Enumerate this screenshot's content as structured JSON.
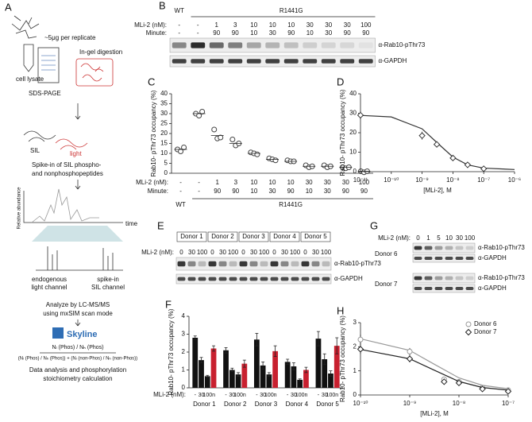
{
  "panel_a": {
    "label": "A",
    "amount": "~5μg per replicate",
    "digestion": "In-gel digestion",
    "lysate": "cell lysate",
    "gel": "SDS-PAGE",
    "sil": "SIL",
    "light": "light",
    "spike_in": [
      "Spike-in of SIL phospho-",
      "and nonphosphopeptides"
    ],
    "y_axis": "Relative abundance",
    "x_axis": "time",
    "channels": [
      [
        "endogenous",
        "light channel"
      ],
      [
        "spike-in",
        "SIL channel"
      ]
    ],
    "analyze": [
      "Analyze by LC-MS/MS",
      "using mxSIM scan mode"
    ],
    "software": "Skyline",
    "formula": [
      "Nₗ (Phos) / Nₕ (Phos)",
      "(Nₗ (Phos) / Nₕ (Phos)) + (Nₗ (non-Phos) / Nₕ (non-Phos))"
    ],
    "calculation": [
      "Data analysis and phosphorylation",
      "stoichiometry calculation"
    ]
  },
  "panel_b": {
    "label": "B",
    "groups": [
      "WT",
      "R1441G"
    ],
    "row_labels": [
      "MLi-2 (nM):",
      "Minute:"
    ],
    "mli": [
      "-",
      "-",
      "1",
      "3",
      "10",
      "10",
      "10",
      "30",
      "30",
      "30",
      "100"
    ],
    "minute": [
      "-",
      "-",
      "90",
      "90",
      "10",
      "30",
      "90",
      "10",
      "30",
      "90",
      "90"
    ],
    "antibodies": [
      "α-Rab10-pThr73",
      "α-GAPDH"
    ]
  },
  "panel_e": {
    "label": "E",
    "donors": [
      "Donor 1",
      "Donor 2",
      "Donor 3",
      "Donor 4",
      "Donor 5"
    ],
    "row_label": "MLi-2 (nM):",
    "doses": [
      "0",
      "30",
      "100"
    ],
    "antibodies": [
      "α-Rab10-pThr73",
      "α-GAPDH"
    ]
  },
  "panel_g": {
    "label": "G",
    "row_label": "MLi-2 (nM):",
    "doses": [
      "0",
      "1",
      "5",
      "10",
      "30",
      "100"
    ],
    "donors": [
      "Donor 6",
      "Donor 7"
    ],
    "antibodies": [
      "α-Rab10-pThr73",
      "α-GAPDH"
    ]
  },
  "chart_data": [
    {
      "panel": "C",
      "type": "scatter",
      "y_label": "Rab10- pThr73 occupancy (%)",
      "ylim": [
        0,
        40
      ],
      "yticks": [
        0,
        5,
        10,
        15,
        20,
        25,
        30,
        35,
        40
      ],
      "row_labels": [
        "MLi-2 (nM):",
        "Minute:"
      ],
      "groups": [
        "WT",
        "R1441G"
      ],
      "mli": [
        "-",
        "-",
        "1",
        "3",
        "10",
        "10",
        "10",
        "30",
        "30",
        "30",
        "100"
      ],
      "minute": [
        "-",
        "-",
        "90",
        "90",
        "10",
        "30",
        "90",
        "10",
        "30",
        "90",
        "90"
      ],
      "points": [
        [
          12,
          11,
          13
        ],
        [
          30,
          29,
          31
        ],
        [
          22,
          17.5,
          18
        ],
        [
          17,
          14,
          15
        ],
        [
          10.5,
          10,
          9.5
        ],
        [
          7.5,
          7,
          6.5
        ],
        [
          6.5,
          6,
          6
        ],
        [
          4,
          3,
          3.5
        ],
        [
          4,
          3,
          3.5
        ],
        [
          3,
          2.5,
          3
        ],
        [
          1,
          0.5,
          1
        ]
      ],
      "means": [
        12,
        30,
        19,
        15,
        10,
        7,
        6,
        3.5,
        3.5,
        3,
        1
      ],
      "color": "#444444"
    },
    {
      "panel": "D",
      "type": "line",
      "log_x": true,
      "y_label": "Rab10- pThr73 occupancy (%)",
      "x_label": "[MLi-2], M",
      "xlim": [
        1e-11,
        1e-06
      ],
      "xticks": [
        {
          "value": 1e-11,
          "label": "10⁻¹¹"
        },
        {
          "value": 1e-10,
          "label": "10⁻¹⁰"
        },
        {
          "value": 1e-09,
          "label": "10⁻⁹"
        },
        {
          "value": 1e-08,
          "label": "10⁻⁸"
        },
        {
          "value": 1e-07,
          "label": "10⁻⁷"
        },
        {
          "value": 1e-06,
          "label": "10⁻⁶"
        }
      ],
      "ylim": [
        0,
        40
      ],
      "yticks": [
        0,
        10,
        20,
        30,
        40
      ],
      "series": [
        {
          "color": "#333333",
          "marker": "diamond",
          "x": [
            1e-11,
            1e-09,
            3e-09,
            1e-08,
            3e-08,
            1e-07
          ],
          "values": [
            29,
            18.5,
            14,
            7,
            3.5,
            1.5
          ],
          "errors": [
            2,
            2,
            1.5,
            0.5,
            0.5,
            0.5
          ],
          "fit": {
            "x": [
              1e-11,
              1e-10,
              1e-09,
              3e-09,
              1e-08,
              3e-08,
              1e-07,
              1e-06
            ],
            "values": [
              28.9,
              28.1,
              22,
              15,
              7.5,
              3.5,
              1.8,
              1.1
            ]
          }
        }
      ]
    },
    {
      "panel": "F",
      "type": "bar",
      "y_label": "Rab10- pThr73 occupancy (%)",
      "ylim": [
        0,
        4
      ],
      "yticks": [
        0,
        1,
        2,
        3,
        4
      ],
      "row_label": "MLi-2 (nM):",
      "categories": [
        "Donor 1",
        "Donor 2",
        "Donor 3",
        "Donor 4",
        "Donor 5"
      ],
      "bar_labels": [
        "-",
        "30",
        "100",
        "n"
      ],
      "colors": [
        "#111111",
        "#111111",
        "#111111",
        "#c8202f"
      ],
      "values": [
        [
          2.8,
          1.55,
          0.65,
          2.2
        ],
        [
          2.1,
          1.0,
          0.75,
          1.35
        ],
        [
          2.7,
          1.25,
          0.75,
          2.05
        ],
        [
          1.45,
          1.2,
          0.45,
          1.0
        ],
        [
          2.75,
          1.6,
          0.8,
          2.35
        ]
      ],
      "errors": [
        [
          0.1,
          0.15,
          0.05,
          0.15
        ],
        [
          0.15,
          0.1,
          0.1,
          0.2
        ],
        [
          0.35,
          0.2,
          0.1,
          0.3
        ],
        [
          0.15,
          0.2,
          0.05,
          0.15
        ],
        [
          0.4,
          0.3,
          0.15,
          0.45
        ]
      ]
    },
    {
      "panel": "H",
      "type": "line",
      "log_x": true,
      "y_label": "Rab10- pThr73 occupancy (%)",
      "x_label": "[MLi-2], M",
      "xlim": [
        1e-10,
        1e-07
      ],
      "xticks": [
        {
          "value": 1e-10,
          "label": "10⁻¹⁰"
        },
        {
          "value": 1e-09,
          "label": "10⁻⁹"
        },
        {
          "value": 1e-08,
          "label": "10⁻⁸"
        },
        {
          "value": 1e-07,
          "label": "10⁻⁷"
        }
      ],
      "ylim": [
        0,
        3
      ],
      "yticks": [
        0,
        1,
        2,
        3
      ],
      "legend": "top-right",
      "series": [
        {
          "name": "Donor 6",
          "color": "#999999",
          "marker": "circle",
          "x": [
            1e-10,
            1e-09,
            5e-09,
            1e-08,
            3e-08,
            1e-07
          ],
          "values": [
            2.3,
            1.8,
            0.65,
            0.55,
            0.3,
            0.2
          ],
          "errors": [
            0.2,
            0.15,
            0.1,
            0.1,
            0.05,
            0.05
          ],
          "fit": {
            "x": [
              1e-10,
              1e-09,
              3e-09,
              1e-08,
              3e-08,
              1e-07
            ],
            "values": [
              2.33,
              1.85,
              1.3,
              0.71,
              0.4,
              0.26
            ]
          }
        },
        {
          "name": "Donor 7",
          "color": "#222222",
          "marker": "diamond",
          "x": [
            1e-10,
            1e-09,
            5e-09,
            1e-08,
            3e-08,
            1e-07
          ],
          "values": [
            1.9,
            1.5,
            0.55,
            0.5,
            0.25,
            0.15
          ],
          "errors": [
            0.2,
            0.15,
            0.1,
            0.1,
            0.05,
            0.05
          ],
          "fit": {
            "x": [
              1e-10,
              1e-09,
              3e-09,
              1e-08,
              3e-08,
              1e-07
            ],
            "values": [
              1.89,
              1.5,
              1.05,
              0.56,
              0.31,
              0.2
            ]
          }
        }
      ]
    }
  ]
}
